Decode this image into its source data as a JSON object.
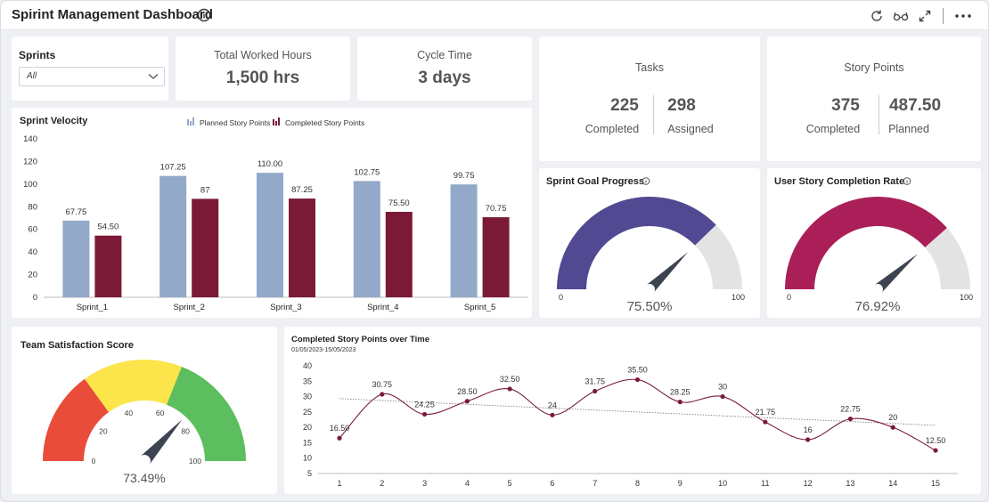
{
  "header": {
    "title": "Spirint Management Dashboard",
    "icons": [
      "info-icon",
      "refresh-icon",
      "glasses-icon",
      "expand-icon",
      "more-icon"
    ]
  },
  "sprints_filter": {
    "label": "Sprints",
    "value": "All"
  },
  "total_worked_hours": {
    "label": "Total Worked Hours",
    "value": "1,500 hrs"
  },
  "cycle_time": {
    "label": "Cycle Time",
    "value": "3 days"
  },
  "tasks": {
    "label": "Tasks",
    "completed_value": "225",
    "completed_label": "Completed",
    "assigned_value": "298",
    "assigned_label": "Assigned"
  },
  "story_points": {
    "label": "Story Points",
    "completed_value": "375",
    "completed_label": "Completed",
    "planned_value": "487.50",
    "planned_label": "Planned"
  },
  "colors": {
    "planned": "#93a9c9",
    "completed": "#7b1a36",
    "goal": "#514a92",
    "completion": "#ab1f59",
    "gauge_bg": "#e3e3e3",
    "needle": "#3d4451",
    "line": "#7b1a36",
    "red": "#ea4c3a",
    "yellow": "#fbe54a",
    "green": "#5cbe5e"
  },
  "chart_data": [
    {
      "id": "sprint-velocity",
      "type": "bar",
      "title": "Sprint Velocity",
      "categories": [
        "Sprint_1",
        "Sprint_2",
        "Sprint_3",
        "Sprint_4",
        "Sprint_5"
      ],
      "series": [
        {
          "name": "Planned Story Points",
          "values": [
            67.75,
            107.25,
            110.0,
            102.75,
            99.75
          ],
          "labels": [
            "67.75",
            "107.25",
            "110.00",
            "102.75",
            "99.75"
          ]
        },
        {
          "name": "Completed Story Points",
          "values": [
            54.5,
            87,
            87.25,
            75.5,
            70.75
          ],
          "labels": [
            "54.50",
            "87",
            "87.25",
            "75.50",
            "70.75"
          ]
        }
      ],
      "ylim": [
        0,
        140
      ],
      "yticks": [
        "0",
        "20",
        "40",
        "60",
        "80",
        "100",
        "120",
        "140"
      ],
      "legend": "top"
    },
    {
      "id": "sprint-goal-progress",
      "type": "gauge",
      "title": "Sprint Goal Progress",
      "value": 75.5,
      "value_label": "75.50%",
      "min_label": "0",
      "max_label": "100",
      "range": [
        0,
        100
      ]
    },
    {
      "id": "user-story-completion-rate",
      "type": "gauge",
      "title": "User Story Completion Rate",
      "value": 76.92,
      "value_label": "76.92%",
      "min_label": "0",
      "max_label": "100",
      "range": [
        0,
        100
      ]
    },
    {
      "id": "team-satisfaction-score",
      "type": "gauge",
      "title": "Team Satisfaction Score",
      "value": 73.49,
      "value_label": "73.49%",
      "range": [
        0,
        100
      ],
      "ticks": [
        "0",
        "20",
        "40",
        "60",
        "80",
        "100"
      ],
      "bands": [
        {
          "from": 0,
          "to": 30
        },
        {
          "from": 30,
          "to": 62
        },
        {
          "from": 62,
          "to": 100
        }
      ]
    },
    {
      "id": "completed-story-points-over-time",
      "type": "line",
      "title": "Completed Story Points over Time",
      "subtitle": "01/05/2023-15/05/2023",
      "x": [
        "1",
        "2",
        "3",
        "4",
        "5",
        "6",
        "7",
        "8",
        "9",
        "10",
        "11",
        "12",
        "13",
        "14",
        "15"
      ],
      "values": [
        16.5,
        30.75,
        24.25,
        28.5,
        32.5,
        24,
        31.75,
        35.5,
        28.25,
        30,
        21.75,
        16,
        22.75,
        20,
        12.5
      ],
      "labels": [
        "16.50",
        "30.75",
        "24.25",
        "28.50",
        "32.50",
        "24",
        "31.75",
        "35.50",
        "28.25",
        "30",
        "21.75",
        "16",
        "22.75",
        "20",
        "12.50"
      ],
      "ylim": [
        5,
        40
      ],
      "yticks": [
        "5",
        "10",
        "15",
        "20",
        "25",
        "30",
        "35",
        "40"
      ],
      "trendline": true
    }
  ]
}
